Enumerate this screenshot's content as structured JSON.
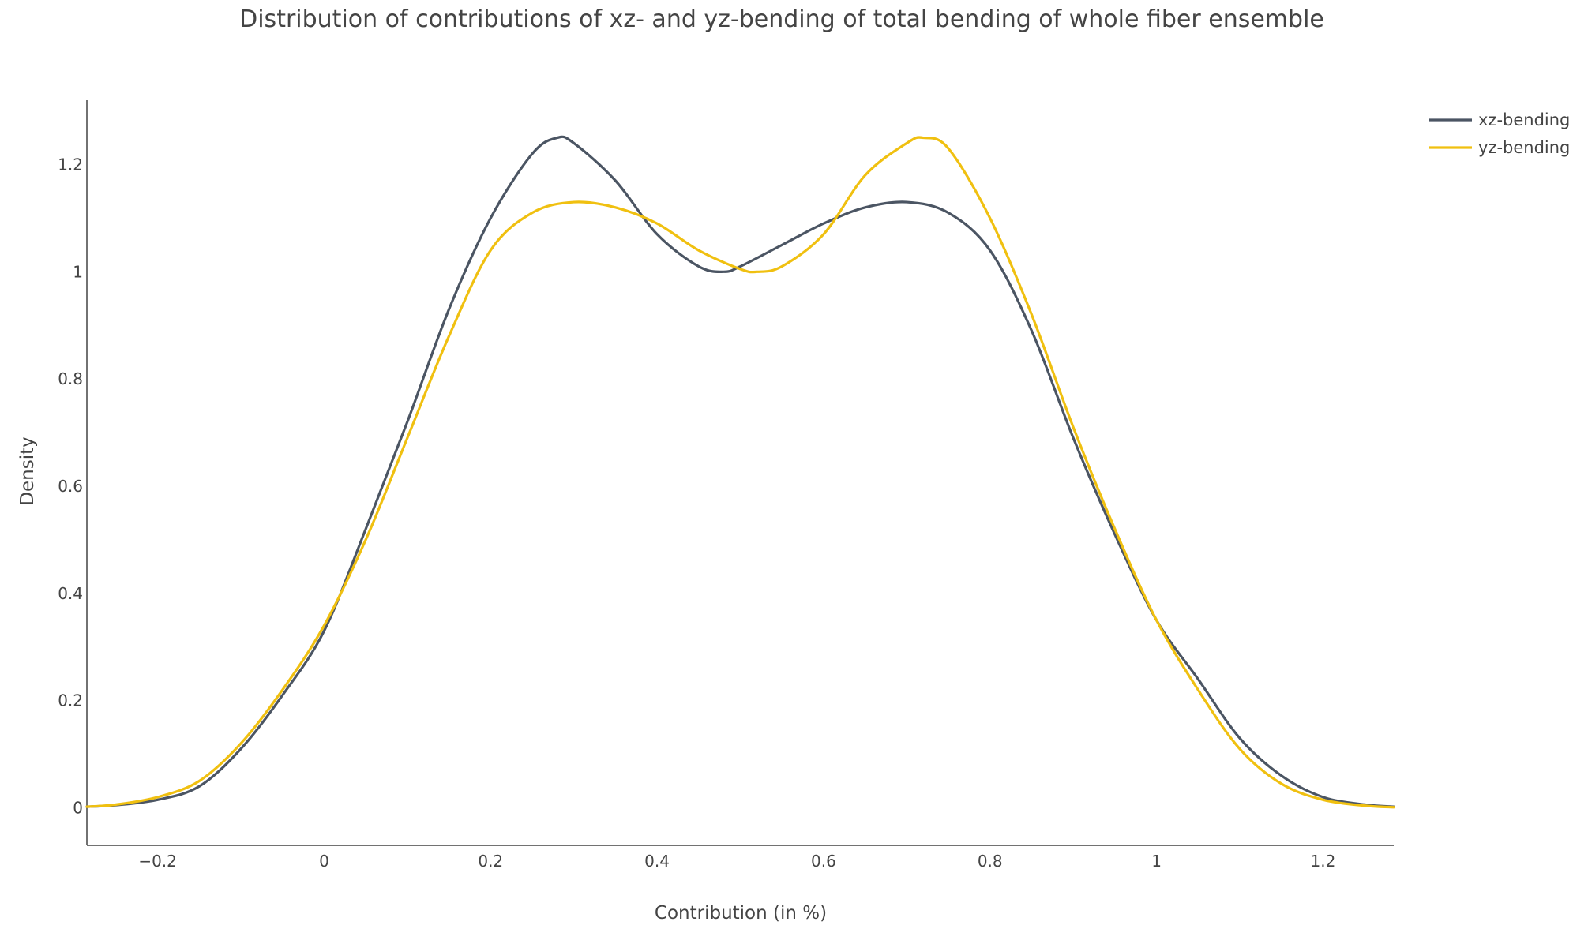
{
  "chart_data": {
    "type": "line",
    "title": "Distribution of contributions of xz- and yz-bending of total bending of whole fiber ensemble",
    "xlabel": "Contribution (in %)",
    "ylabel": "Density",
    "xlim": [
      -0.285,
      1.285
    ],
    "ylim": [
      -0.07,
      1.32
    ],
    "x_ticks": [
      -0.2,
      0,
      0.2,
      0.4,
      0.6,
      0.8,
      1,
      1.2
    ],
    "x_tick_labels": [
      "−0.2",
      "0",
      "0.2",
      "0.4",
      "0.6",
      "0.8",
      "1",
      "1.2"
    ],
    "y_ticks": [
      0,
      0.2,
      0.4,
      0.6,
      0.8,
      1,
      1.2
    ],
    "y_tick_labels": [
      "0",
      "0.2",
      "0.4",
      "0.6",
      "0.8",
      "1",
      "1.2"
    ],
    "grid": false,
    "legend_position": "top-right",
    "series": [
      {
        "name": "xz-bending",
        "color": "#4b5563",
        "x": [
          -0.285,
          -0.25,
          -0.2,
          -0.15,
          -0.1,
          -0.05,
          0,
          0.05,
          0.1,
          0.15,
          0.2,
          0.25,
          0.28,
          0.3,
          0.35,
          0.4,
          0.45,
          0.48,
          0.5,
          0.55,
          0.6,
          0.65,
          0.7,
          0.75,
          0.8,
          0.85,
          0.9,
          0.95,
          1,
          1.05,
          1.1,
          1.15,
          1.2,
          1.25,
          1.285
        ],
        "y": [
          0.002,
          0.005,
          0.015,
          0.04,
          0.11,
          0.21,
          0.33,
          0.52,
          0.72,
          0.93,
          1.1,
          1.22,
          1.25,
          1.24,
          1.17,
          1.07,
          1.01,
          1.0,
          1.01,
          1.05,
          1.09,
          1.12,
          1.13,
          1.11,
          1.04,
          0.89,
          0.69,
          0.51,
          0.35,
          0.24,
          0.13,
          0.06,
          0.02,
          0.006,
          0.002
        ]
      },
      {
        "name": "yz-bending",
        "color": "#f0c010",
        "x": [
          -0.285,
          -0.25,
          -0.2,
          -0.15,
          -0.1,
          -0.05,
          0,
          0.05,
          0.1,
          0.15,
          0.2,
          0.25,
          0.3,
          0.35,
          0.4,
          0.45,
          0.5,
          0.52,
          0.55,
          0.6,
          0.65,
          0.7,
          0.72,
          0.75,
          0.8,
          0.85,
          0.9,
          0.95,
          1,
          1.05,
          1.1,
          1.15,
          1.2,
          1.25,
          1.285
        ],
        "y": [
          0.002,
          0.006,
          0.02,
          0.05,
          0.12,
          0.22,
          0.34,
          0.5,
          0.69,
          0.88,
          1.04,
          1.11,
          1.13,
          1.12,
          1.09,
          1.04,
          1.005,
          1.0,
          1.01,
          1.07,
          1.18,
          1.24,
          1.25,
          1.23,
          1.1,
          0.92,
          0.71,
          0.52,
          0.35,
          0.22,
          0.11,
          0.045,
          0.015,
          0.004,
          0.001
        ]
      }
    ]
  }
}
